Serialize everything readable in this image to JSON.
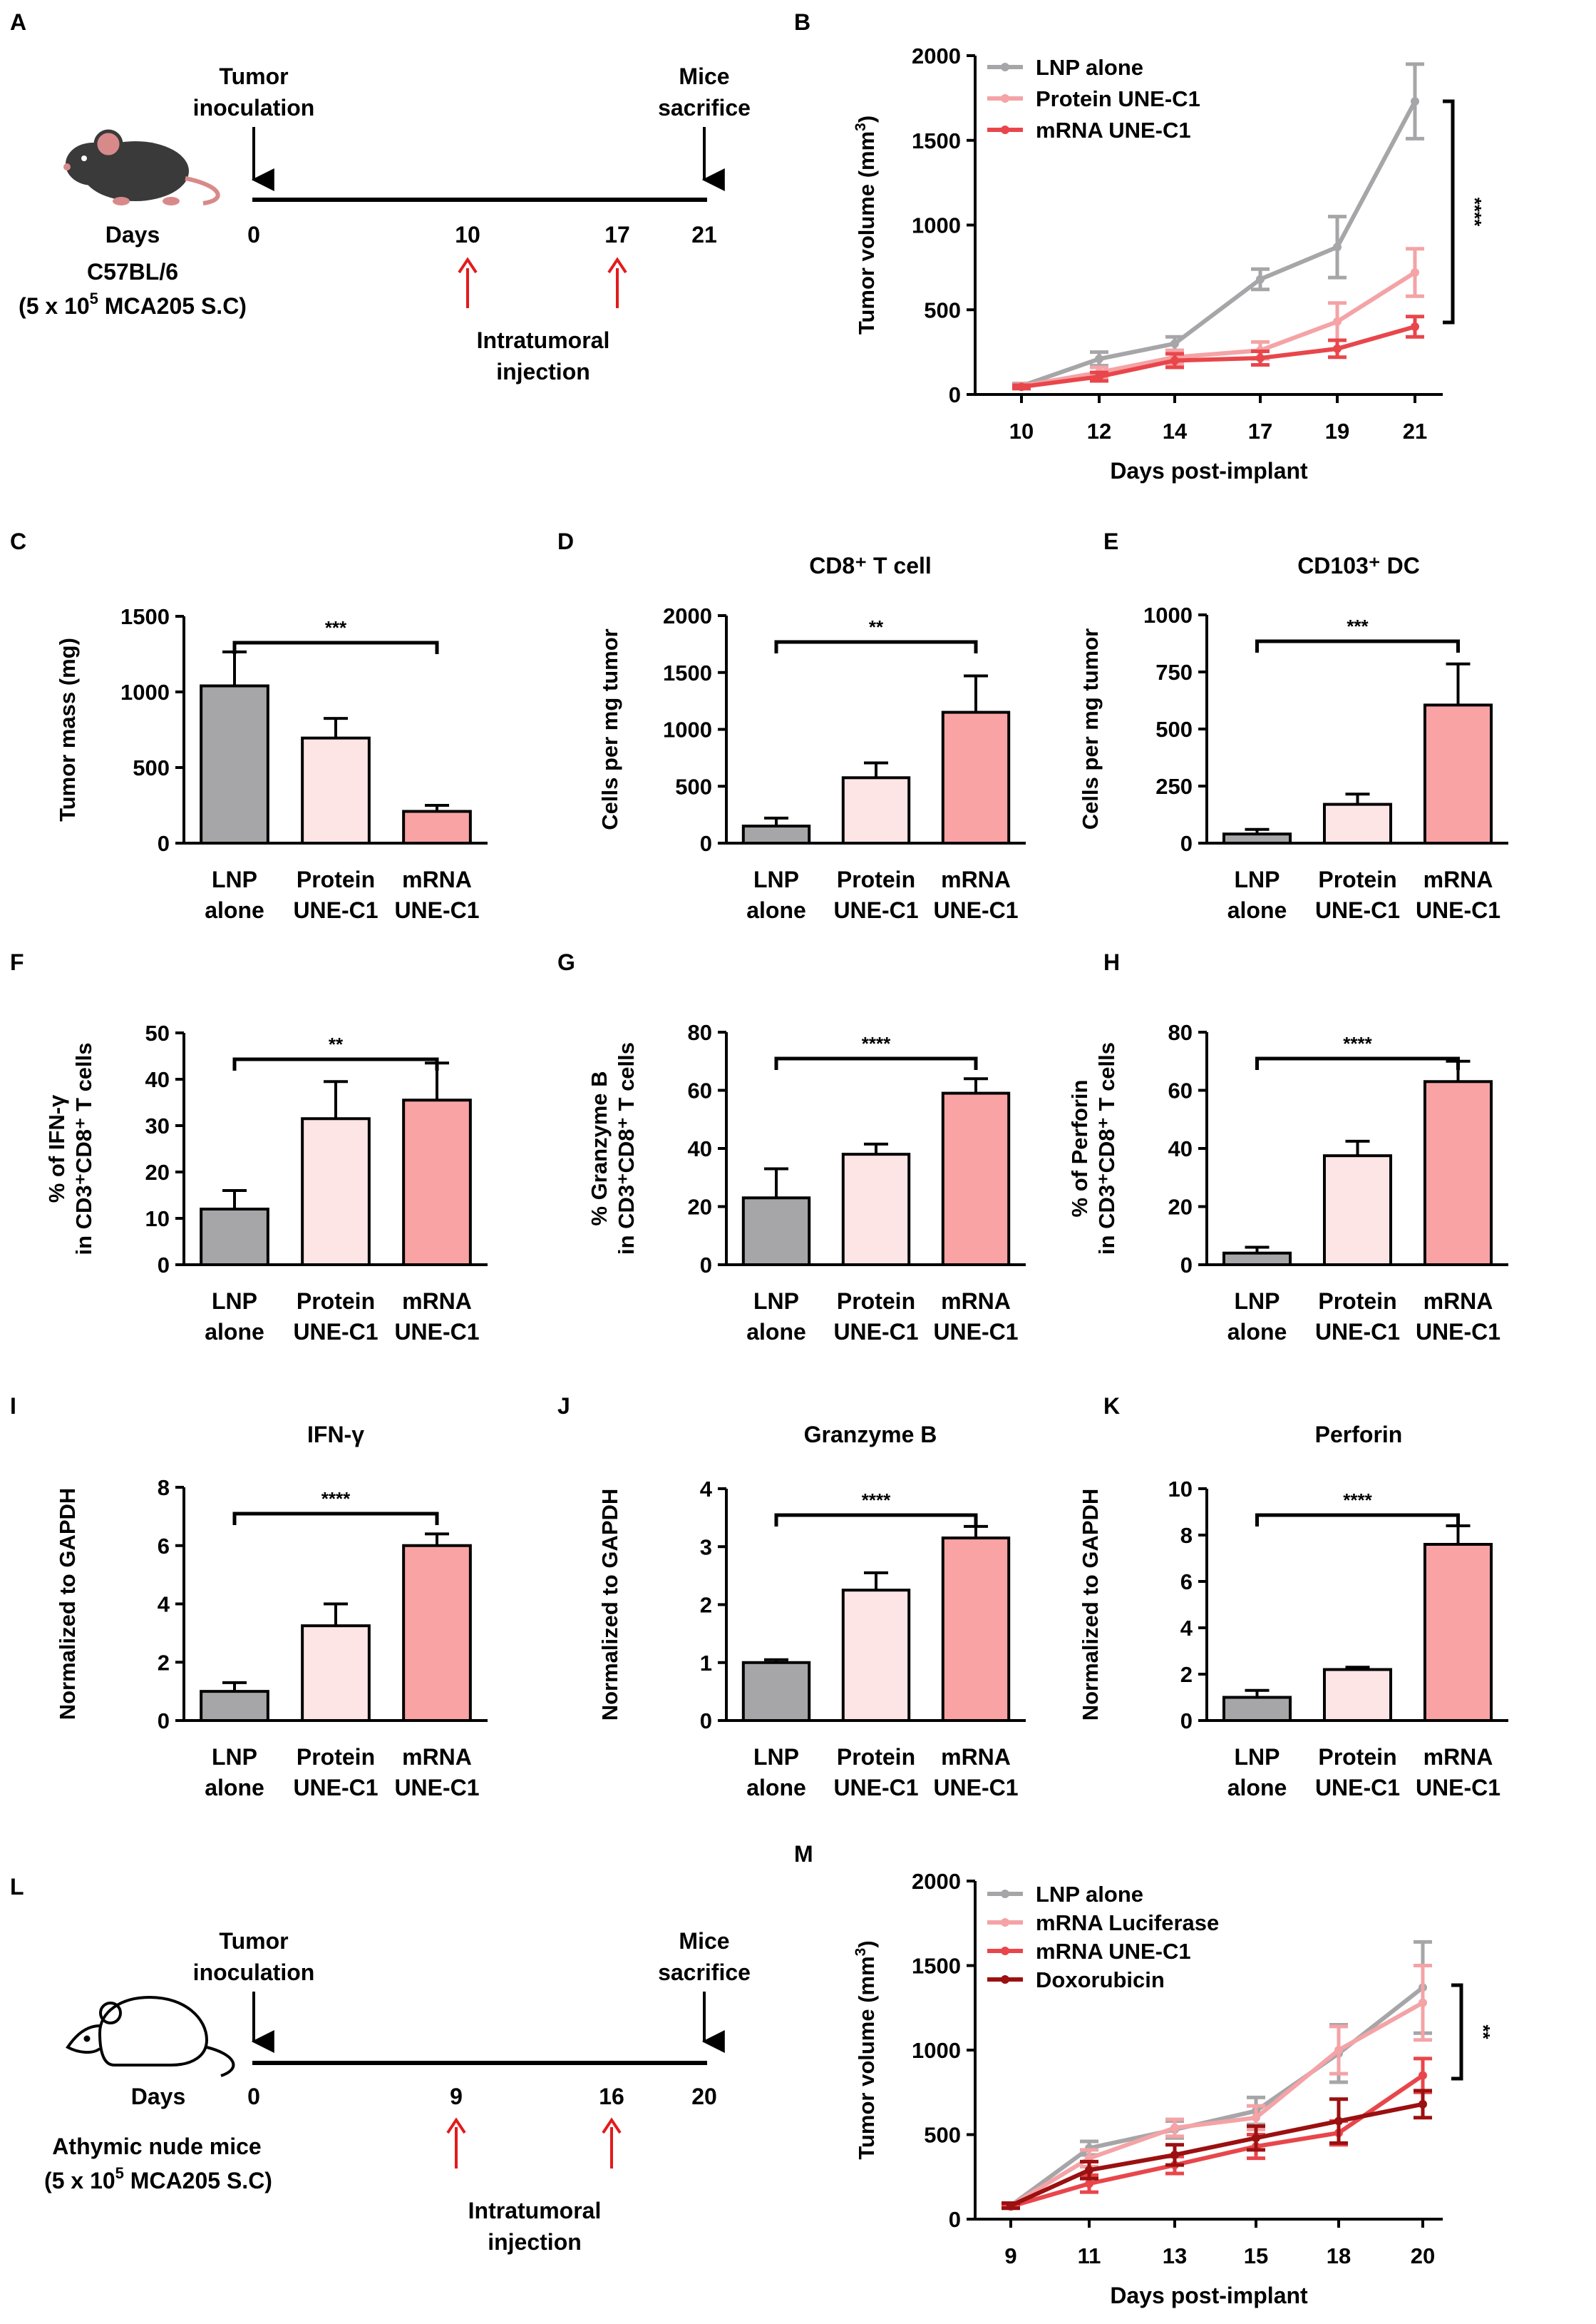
{
  "colors": {
    "gray": "#a6a6a9",
    "grayLine": "#a6a6a9",
    "lightPink": "#fde5e6",
    "pink": "#f9a3a4",
    "lightPinkLine": "#f4a3a6",
    "red": "#e8464b",
    "darkRed": "#9b1010",
    "arrowRed": "#e31a1c"
  },
  "schematic_A": {
    "letter": "A",
    "start_label": [
      "Tumor",
      "inoculation"
    ],
    "end_label": [
      "Mice",
      "sacrifice"
    ],
    "days_label": "Days",
    "days": [
      "0",
      "10",
      "17",
      "21"
    ],
    "strain": "C57BL/6",
    "dose": [
      "(5 x 10",
      "5",
      " MCA205 S.C)"
    ],
    "injection_label": [
      "Intratumoral",
      "injection"
    ],
    "icon": "mouse-icon"
  },
  "schematic_L": {
    "letter": "L",
    "start_label": [
      "Tumor",
      "inoculation"
    ],
    "end_label": [
      "Mice",
      "sacrifice"
    ],
    "days_label": "Days",
    "days": [
      "0",
      "9",
      "16",
      "20"
    ],
    "strain": "Athymic nude mice",
    "dose": [
      "(5 x 10",
      "5",
      " MCA205 S.C)"
    ],
    "injection_label": [
      "Intratumoral",
      "injection"
    ],
    "icon": "nude-mouse-icon"
  },
  "chart_data": [
    {
      "id": "B",
      "type": "line",
      "ylabel": "Tumor volume (mm3)",
      "xlabel": "Days post-implant",
      "x": [
        "10",
        "12",
        "14",
        "17",
        "19",
        "21"
      ],
      "ylim": [
        0,
        2000
      ],
      "yticks": [
        "0",
        "500",
        "1000",
        "1500",
        "2000"
      ],
      "series": [
        {
          "name": "LNP alone",
          "color": "#a6a6a9",
          "values": [
            50,
            210,
            300,
            680,
            870,
            1730
          ],
          "err": [
            15,
            40,
            40,
            60,
            180,
            220
          ]
        },
        {
          "name": "Protein UNE-C1",
          "color": "#f4a3a6",
          "values": [
            50,
            130,
            220,
            260,
            430,
            720
          ],
          "err": [
            10,
            30,
            40,
            50,
            110,
            140
          ]
        },
        {
          "name": "mRNA UNE-C1",
          "color": "#e8464b",
          "values": [
            45,
            105,
            200,
            215,
            270,
            400
          ],
          "err": [
            10,
            25,
            40,
            40,
            50,
            60
          ]
        }
      ],
      "significance": "****"
    },
    {
      "id": "C",
      "type": "bar",
      "title": "",
      "ylabel": [
        "Tumor mass (mg)"
      ],
      "categories": [
        [
          "LNP",
          "alone"
        ],
        [
          "Protein",
          "UNE-C1"
        ],
        [
          "mRNA",
          "UNE-C1"
        ]
      ],
      "values": [
        1040,
        695,
        210
      ],
      "err": [
        225,
        130,
        40
      ],
      "ylim": [
        0,
        1500
      ],
      "yticks": [
        "0",
        "500",
        "1000",
        "1500"
      ],
      "significance": "***",
      "sig_span": [
        0,
        2
      ]
    },
    {
      "id": "D",
      "type": "bar",
      "title": "CD8⁺ T cell",
      "ylabel": [
        "Cells per mg tumor"
      ],
      "categories": [
        [
          "LNP",
          "alone"
        ],
        [
          "Protein",
          "UNE-C1"
        ],
        [
          "mRNA",
          "UNE-C1"
        ]
      ],
      "values": [
        150,
        575,
        1150
      ],
      "err": [
        70,
        130,
        320
      ],
      "ylim": [
        0,
        2000
      ],
      "yticks": [
        "0",
        "500",
        "1000",
        "1500",
        "2000"
      ],
      "significance": "**",
      "sig_span": [
        0,
        2
      ]
    },
    {
      "id": "E",
      "type": "bar",
      "title": "CD103⁺ DC",
      "ylabel": [
        "Cells per mg tumor"
      ],
      "categories": [
        [
          "LNP",
          "alone"
        ],
        [
          "Protein",
          "UNE-C1"
        ],
        [
          "mRNA",
          "UNE-C1"
        ]
      ],
      "values": [
        40,
        170,
        605
      ],
      "err": [
        20,
        45,
        180
      ],
      "ylim": [
        0,
        1000
      ],
      "yticks": [
        "0",
        "250",
        "500",
        "750",
        "1000"
      ],
      "significance": "***",
      "sig_span": [
        0,
        2
      ]
    },
    {
      "id": "F",
      "type": "bar",
      "title": "",
      "ylabel": [
        "% of IFN-γ",
        "in CD3⁺CD8⁺ T cells"
      ],
      "categories": [
        [
          "LNP",
          "alone"
        ],
        [
          "Protein",
          "UNE-C1"
        ],
        [
          "mRNA",
          "UNE-C1"
        ]
      ],
      "values": [
        12,
        31.5,
        35.5
      ],
      "err": [
        4,
        8,
        8
      ],
      "ylim": [
        0,
        50
      ],
      "yticks": [
        "0",
        "10",
        "20",
        "30",
        "40",
        "50"
      ],
      "significance": "**",
      "sig_span": [
        0,
        2
      ]
    },
    {
      "id": "G",
      "type": "bar",
      "title": "",
      "ylabel": [
        "% Granzyme B",
        "in CD3⁺CD8⁺ T cells"
      ],
      "categories": [
        [
          "LNP",
          "alone"
        ],
        [
          "Protein",
          "UNE-C1"
        ],
        [
          "mRNA",
          "UNE-C1"
        ]
      ],
      "values": [
        23,
        38,
        59
      ],
      "err": [
        10,
        3.5,
        5
      ],
      "ylim": [
        0,
        80
      ],
      "yticks": [
        "0",
        "20",
        "40",
        "60",
        "80"
      ],
      "significance": "****",
      "sig_span": [
        0,
        2
      ]
    },
    {
      "id": "H",
      "type": "bar",
      "title": "",
      "ylabel": [
        "% of Perforin",
        "in CD3⁺CD8⁺ T cells"
      ],
      "categories": [
        [
          "LNP",
          "alone"
        ],
        [
          "Protein",
          "UNE-C1"
        ],
        [
          "mRNA",
          "UNE-C1"
        ]
      ],
      "values": [
        4,
        37.5,
        63
      ],
      "err": [
        2,
        5,
        7
      ],
      "ylim": [
        0,
        80
      ],
      "yticks": [
        "0",
        "20",
        "40",
        "60",
        "80"
      ],
      "significance": "****",
      "sig_span": [
        0,
        2
      ]
    },
    {
      "id": "I",
      "type": "bar",
      "title": "IFN-γ",
      "ylabel": [
        "Normalized to GAPDH"
      ],
      "categories": [
        [
          "LNP",
          "alone"
        ],
        [
          "Protein",
          "UNE-C1"
        ],
        [
          "mRNA",
          "UNE-C1"
        ]
      ],
      "values": [
        1.0,
        3.25,
        6.0
      ],
      "err": [
        0.3,
        0.75,
        0.4
      ],
      "ylim": [
        0,
        8
      ],
      "yticks": [
        "0",
        "2",
        "4",
        "6",
        "8"
      ],
      "significance": "****",
      "sig_span": [
        0,
        2
      ]
    },
    {
      "id": "J",
      "type": "bar",
      "title": "Granzyme B",
      "ylabel": [
        "Normalized to GAPDH"
      ],
      "categories": [
        [
          "LNP",
          "alone"
        ],
        [
          "Protein",
          "UNE-C1"
        ],
        [
          "mRNA",
          "UNE-C1"
        ]
      ],
      "values": [
        1.0,
        2.25,
        3.15
      ],
      "err": [
        0.05,
        0.3,
        0.2
      ],
      "ylim": [
        0,
        4
      ],
      "yticks": [
        "0",
        "1",
        "2",
        "3",
        "4"
      ],
      "significance": "****",
      "sig_span": [
        0,
        2
      ]
    },
    {
      "id": "K",
      "type": "bar",
      "title": "Perforin",
      "ylabel": [
        "Normalized to GAPDH"
      ],
      "categories": [
        [
          "LNP",
          "alone"
        ],
        [
          "Protein",
          "UNE-C1"
        ],
        [
          "mRNA",
          "UNE-C1"
        ]
      ],
      "values": [
        1.0,
        2.2,
        7.6
      ],
      "err": [
        0.3,
        0.1,
        0.8
      ],
      "ylim": [
        0,
        10
      ],
      "yticks": [
        "0",
        "2",
        "4",
        "6",
        "8",
        "10"
      ],
      "significance": "****",
      "sig_span": [
        0,
        2
      ]
    },
    {
      "id": "M",
      "type": "line",
      "ylabel": "Tumor volume (mm3)",
      "xlabel": "Days post-implant",
      "x": [
        "9",
        "11",
        "13",
        "15",
        "18",
        "20"
      ],
      "ylim": [
        0,
        2000
      ],
      "yticks": [
        "0",
        "500",
        "1000",
        "1500",
        "2000"
      ],
      "series": [
        {
          "name": "LNP alone",
          "color": "#a6a6a9",
          "values": [
            80,
            420,
            530,
            640,
            980,
            1370
          ],
          "err": [
            15,
            40,
            50,
            80,
            170,
            270
          ]
        },
        {
          "name": "mRNA Luciferase",
          "color": "#f4a3a6",
          "values": [
            80,
            360,
            540,
            600,
            1000,
            1280
          ],
          "err": [
            15,
            50,
            50,
            70,
            140,
            220
          ]
        },
        {
          "name": "mRNA UNE-C1",
          "color": "#e8464b",
          "values": [
            75,
            210,
            320,
            430,
            510,
            850
          ],
          "err": [
            10,
            50,
            50,
            70,
            70,
            100
          ]
        },
        {
          "name": "Doxorubicin",
          "color": "#9b1010",
          "values": [
            80,
            290,
            380,
            480,
            580,
            680
          ],
          "err": [
            15,
            50,
            60,
            70,
            130,
            80
          ]
        }
      ],
      "significance": "**"
    }
  ]
}
